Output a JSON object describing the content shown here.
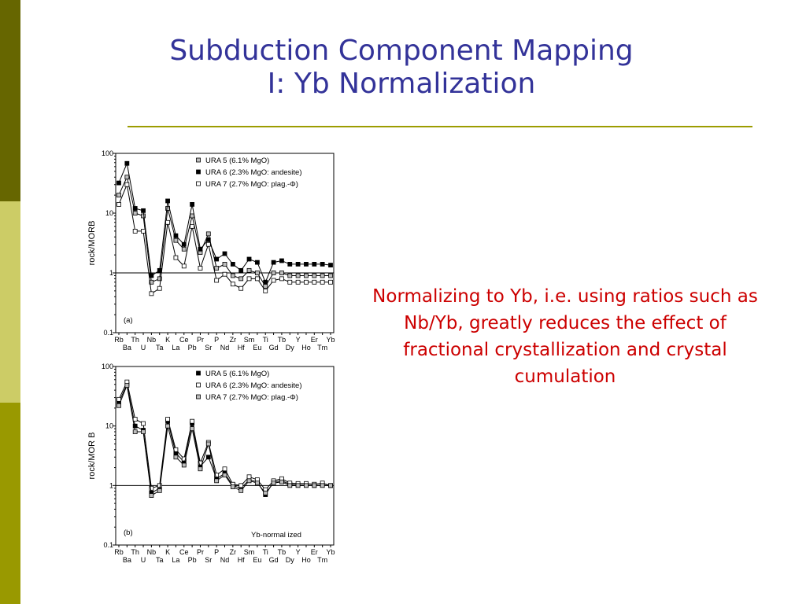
{
  "slide": {
    "title_line1": "Subduction Component Mapping",
    "title_line2": "I: Yb Normalization",
    "body_text": "Normalizing to Yb, i.e. using ratios such as Nb/Yb, greatly reduces the effect of fractional crystallization and crystal cumulation",
    "colors": {
      "title": "#333399",
      "body": "#cc0000",
      "rule": "#9c9c00",
      "bar_dark": "#666600",
      "bar_light": "#cccc66",
      "bar_mid": "#999900"
    }
  },
  "chart_data": [
    {
      "type": "line",
      "panel_label": "(a)",
      "annotation": "",
      "ylabel": "rock/MORB",
      "yscale": "log",
      "ylim": [
        0.1,
        100
      ],
      "yticks": [
        "0.1",
        "1",
        "10",
        "100"
      ],
      "reference_line": 1,
      "legend_position": "top-right",
      "x_top_labels": [
        "Rb",
        "Th",
        "Nb",
        "K",
        "Ce",
        "Pr",
        "P",
        "Zr",
        "Sm",
        "Ti",
        "Tb",
        "Y",
        "Er",
        "Yb"
      ],
      "x_bottom_labels": [
        "Ba",
        "U",
        "Ta",
        "La",
        "Pb",
        "Sr",
        "Nd",
        "Hf",
        "Eu",
        "Gd",
        "Dy",
        "Ho",
        "Tm"
      ],
      "categories": [
        "Rb",
        "Ba",
        "Th",
        "U",
        "Nb",
        "Ta",
        "K",
        "La",
        "Ce",
        "Pb",
        "Pr",
        "Sr",
        "P",
        "Nd",
        "Zr",
        "Hf",
        "Sm",
        "Eu",
        "Ti",
        "Gd",
        "Tb",
        "Dy",
        "Y",
        "Ho",
        "Er",
        "Tm",
        "Yb"
      ],
      "series": [
        {
          "name": "URA 5 (6.1% MgO)",
          "marker": "grey",
          "values": [
            20,
            40,
            10,
            9,
            0.7,
            0.8,
            12,
            3.5,
            2.5,
            9,
            2.2,
            4.5,
            1.2,
            1.4,
            0.9,
            0.8,
            1.1,
            1.0,
            0.6,
            1.0,
            1.0,
            0.9,
            0.9,
            0.9,
            0.9,
            0.9,
            0.9
          ]
        },
        {
          "name": "URA 6 (2.3% MgO: andesite)",
          "marker": "black",
          "values": [
            32,
            68,
            12,
            11,
            0.9,
            1.1,
            16,
            4.2,
            3.0,
            14,
            2.5,
            3.6,
            1.7,
            2.1,
            1.4,
            1.1,
            1.7,
            1.5,
            0.7,
            1.5,
            1.6,
            1.4,
            1.4,
            1.4,
            1.4,
            1.4,
            1.35
          ]
        },
        {
          "name": "URA 7 (2.7% MgO: plag.-Φ)",
          "marker": "white",
          "values": [
            14,
            30,
            5,
            5,
            0.45,
            0.55,
            7,
            1.8,
            1.3,
            6,
            1.2,
            3.0,
            0.75,
            0.95,
            0.65,
            0.55,
            0.8,
            0.8,
            0.5,
            0.75,
            0.8,
            0.7,
            0.7,
            0.7,
            0.7,
            0.7,
            0.7
          ]
        }
      ]
    },
    {
      "type": "line",
      "panel_label": "(b)",
      "annotation": "Yb-normal ized",
      "ylabel": "rock/MOR B",
      "yscale": "log",
      "ylim": [
        0.1,
        100
      ],
      "yticks": [
        "0.1",
        "1",
        "10",
        "100"
      ],
      "reference_line": 1,
      "legend_position": "top-right",
      "x_top_labels": [
        "Rb",
        "Th",
        "Nb",
        "K",
        "Ce",
        "Pr",
        "P",
        "Zr",
        "Sm",
        "Ti",
        "Tb",
        "Y",
        "Er",
        "Yb"
      ],
      "x_bottom_labels": [
        "Ba",
        "U",
        "Ta",
        "La",
        "Pb",
        "Sr",
        "Nd",
        "Hf",
        "Eu",
        "Gd",
        "Dy",
        "Ho",
        "Tm"
      ],
      "categories": [
        "Rb",
        "Ba",
        "Th",
        "U",
        "Nb",
        "Ta",
        "K",
        "La",
        "Ce",
        "Pb",
        "Pr",
        "Sr",
        "P",
        "Nd",
        "Zr",
        "Hf",
        "Sm",
        "Eu",
        "Ti",
        "Gd",
        "Tb",
        "Dy",
        "Y",
        "Ho",
        "Er",
        "Tm",
        "Yb"
      ],
      "series": [
        {
          "name": "URA 5 (6.1% MgO)",
          "marker": "black",
          "values": [
            25,
            50,
            10,
            8.5,
            0.75,
            0.9,
            12,
            3.5,
            2.5,
            11,
            2.1,
            3.0,
            1.3,
            1.6,
            1.0,
            0.9,
            1.25,
            1.15,
            0.7,
            1.15,
            1.2,
            1.05,
            1.02,
            1.02,
            1.0,
            1.02,
            1.0
          ]
        },
        {
          "name": "URA 6 (2.3% MgO: andesite)",
          "marker": "white",
          "values": [
            28,
            55,
            13,
            11,
            0.9,
            1.0,
            13,
            4.0,
            2.8,
            12,
            2.4,
            5.3,
            1.5,
            1.9,
            1.05,
            1.0,
            1.4,
            1.25,
            0.85,
            1.2,
            1.3,
            1.1,
            1.08,
            1.08,
            1.05,
            1.1,
            1.0
          ]
        },
        {
          "name": "URA 7 (2.7% MgO: plag.-Φ)",
          "marker": "grey",
          "values": [
            22,
            48,
            8,
            8,
            0.68,
            0.82,
            10,
            3.0,
            2.2,
            9,
            1.9,
            5.0,
            1.2,
            1.5,
            0.95,
            0.82,
            1.2,
            1.1,
            0.75,
            1.1,
            1.15,
            1.0,
            1.0,
            1.0,
            1.0,
            1.0,
            1.0
          ]
        }
      ]
    }
  ]
}
